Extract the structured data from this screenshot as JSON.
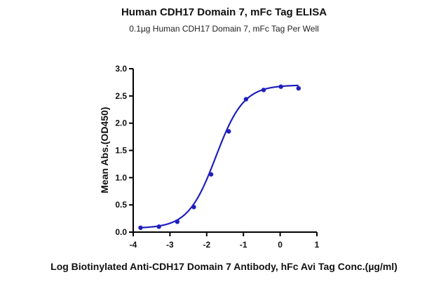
{
  "chart_data": {
    "type": "scatter",
    "title": "Human CDH17 Domain 7, mFc Tag ELISA",
    "subtitle": "0.1µg Human CDH17 Domain 7, mFc Tag Per Well",
    "xlabel": "Log Biotinylated Anti-CDH17 Domain 7 Antibody, hFc Avi  Tag Conc.(µg/ml)",
    "ylabel": "Mean Abs.(OD450)",
    "xlim": [
      -4,
      1
    ],
    "ylim": [
      0,
      3.0
    ],
    "x_ticks": [
      "-4",
      "-3",
      "-2",
      "-1",
      "0",
      "1"
    ],
    "y_ticks": [
      "0.0",
      "0.5",
      "1.0",
      "1.5",
      "2.0",
      "2.5",
      "3.0"
    ],
    "grid": false,
    "color": "#1f1fbf",
    "series": [
      {
        "x": [
          -3.8,
          -3.3,
          -2.8,
          -2.35,
          -1.88,
          -1.4,
          -0.93,
          -0.45,
          0.02,
          0.5
        ],
        "y": [
          0.08,
          0.1,
          0.19,
          0.46,
          1.06,
          1.85,
          2.44,
          2.61,
          2.67,
          2.64
        ],
        "fit": {
          "bottom": 0.07,
          "top": 2.7,
          "logEC50": -1.75,
          "hill": 1.15
        }
      }
    ]
  }
}
